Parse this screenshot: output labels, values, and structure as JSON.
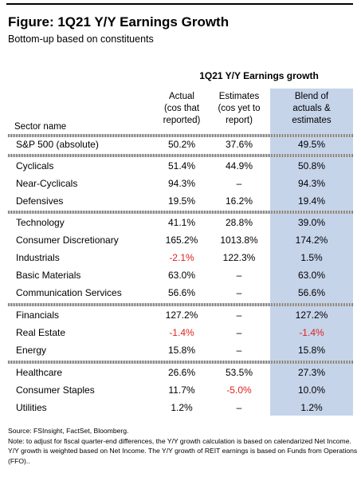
{
  "figure": {
    "title": "Figure: 1Q21 Y/Y Earnings Growth",
    "subtitle": "Bottom-up based on constituents"
  },
  "table": {
    "group_header": "1Q21 Y/Y Earnings growth",
    "columns": {
      "sector": "Sector name",
      "actual": [
        "Actual",
        "(cos that",
        "reported)"
      ],
      "estimates": [
        "Estimates",
        "(cos yet to",
        "report)"
      ],
      "blend": [
        "Blend of",
        "actuals &",
        "estimates"
      ]
    },
    "rows": [
      {
        "name": "S&P 500 (absolute)",
        "actual": "50.2%",
        "estimates": "37.6%",
        "blend": "49.5%"
      },
      {
        "name": "Cyclicals",
        "actual": "51.4%",
        "estimates": "44.9%",
        "blend": "50.8%"
      },
      {
        "name": "Near-Cyclicals",
        "actual": "94.3%",
        "estimates": "–",
        "blend": "94.3%"
      },
      {
        "name": "Defensives",
        "actual": "19.5%",
        "estimates": "16.2%",
        "blend": "19.4%"
      },
      {
        "name": "Technology",
        "actual": "41.1%",
        "estimates": "28.8%",
        "blend": "39.0%"
      },
      {
        "name": "Consumer Discretionary",
        "actual": "165.2%",
        "estimates": "1013.8%",
        "blend": "174.2%"
      },
      {
        "name": "Industrials",
        "actual": "-2.1%",
        "estimates": "122.3%",
        "blend": "1.5%"
      },
      {
        "name": "Basic Materials",
        "actual": "63.0%",
        "estimates": "–",
        "blend": "63.0%"
      },
      {
        "name": "Communication Services",
        "actual": "56.6%",
        "estimates": "–",
        "blend": "56.6%"
      },
      {
        "name": "Financials",
        "actual": "127.2%",
        "estimates": "–",
        "blend": "127.2%"
      },
      {
        "name": "Real Estate",
        "actual": "-1.4%",
        "estimates": "–",
        "blend": "-1.4%"
      },
      {
        "name": "Energy",
        "actual": "15.8%",
        "estimates": "–",
        "blend": "15.8%"
      },
      {
        "name": "Healthcare",
        "actual": "26.6%",
        "estimates": "53.5%",
        "blend": "27.3%"
      },
      {
        "name": "Consumer Staples",
        "actual": "11.7%",
        "estimates": "-5.0%",
        "blend": "10.0%"
      },
      {
        "name": "Utilities",
        "actual": "1.2%",
        "estimates": "–",
        "blend": "1.2%"
      }
    ]
  },
  "footnotes": {
    "source": "Source: FSInsight, FactSet, Bloomberg.",
    "note": "Note: to adjust for fiscal quarter-end differences, the Y/Y growth calculation is based on calendarized Net Income. Y/Y growth is weighted based on Net Income. The Y/Y growth of REIT earnings is based on Funds from Operations (FFO).."
  },
  "colors": {
    "blend_column_background": "#c6d4ea",
    "negative_value": "#e02020"
  }
}
